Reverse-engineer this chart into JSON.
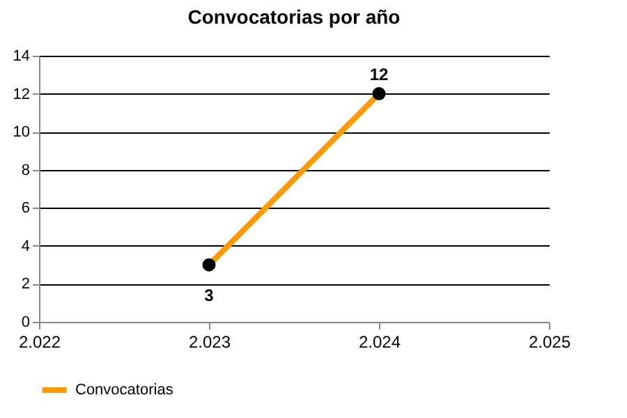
{
  "chart_data": {
    "type": "line",
    "title": "Convocatorias por año",
    "x": [
      2023,
      2024
    ],
    "series": [
      {
        "name": "Convocatorias",
        "color": "#ff9900",
        "values": [
          3,
          12
        ]
      }
    ],
    "xlim": [
      2022,
      2025
    ],
    "xticks": [
      {
        "value": 2022,
        "label": "2.022"
      },
      {
        "value": 2023,
        "label": "2.023"
      },
      {
        "value": 2024,
        "label": "2.024"
      },
      {
        "value": 2025,
        "label": "2.025"
      }
    ],
    "ylim": [
      0,
      14
    ],
    "yticks": [
      0,
      2,
      4,
      6,
      8,
      10,
      12,
      14
    ],
    "grid": "y",
    "legend": "bottom left",
    "marker": "circle",
    "line_style": "solid",
    "data_labels": true
  }
}
